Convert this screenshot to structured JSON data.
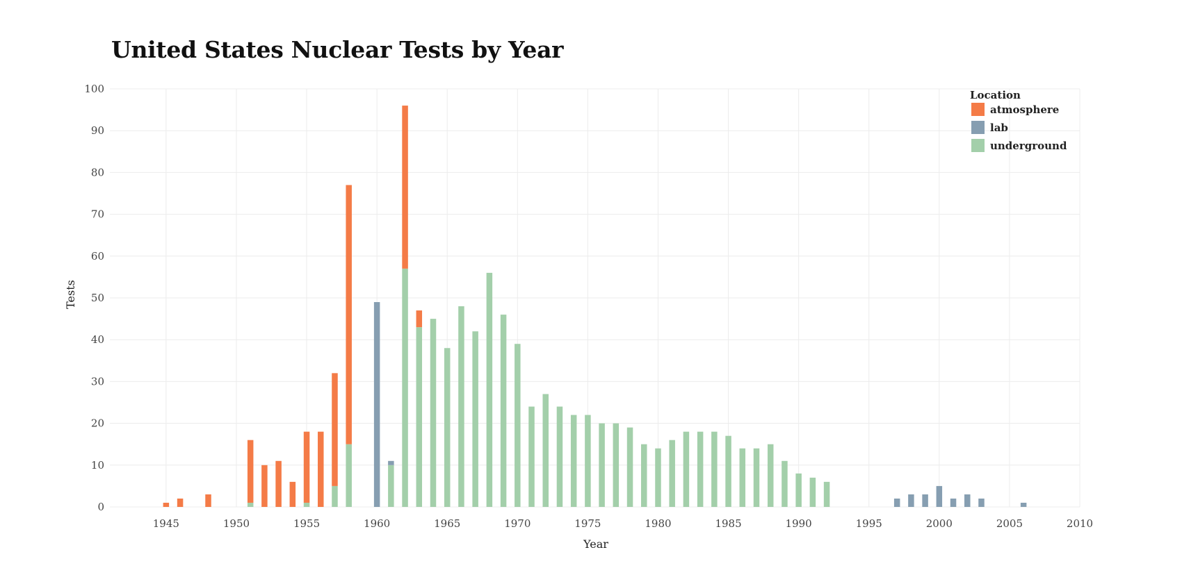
{
  "chart_data": {
    "type": "bar",
    "stacked": true,
    "title": "United States Nuclear Tests by Year",
    "xlabel": "Year",
    "ylabel": "Tests",
    "xlim": [
      1941,
      2010
    ],
    "ylim": [
      0,
      100
    ],
    "x_ticks": [
      1945,
      1950,
      1955,
      1960,
      1965,
      1970,
      1975,
      1980,
      1985,
      1990,
      1995,
      2000,
      2005,
      2010
    ],
    "y_ticks": [
      0,
      10,
      20,
      30,
      40,
      50,
      60,
      70,
      80,
      90,
      100
    ],
    "grid": true,
    "legend": {
      "title": "Location",
      "position": "top-right"
    },
    "series": [
      {
        "name": "underground",
        "color": "#a3cfaa",
        "points": [
          [
            1951,
            1
          ],
          [
            1955,
            1
          ],
          [
            1957,
            5
          ],
          [
            1958,
            15
          ],
          [
            1961,
            10
          ],
          [
            1962,
            57
          ],
          [
            1963,
            43
          ],
          [
            1964,
            45
          ],
          [
            1965,
            38
          ],
          [
            1966,
            48
          ],
          [
            1967,
            42
          ],
          [
            1968,
            56
          ],
          [
            1969,
            46
          ],
          [
            1970,
            39
          ],
          [
            1971,
            24
          ],
          [
            1972,
            27
          ],
          [
            1973,
            24
          ],
          [
            1974,
            22
          ],
          [
            1975,
            22
          ],
          [
            1976,
            20
          ],
          [
            1977,
            20
          ],
          [
            1978,
            19
          ],
          [
            1979,
            15
          ],
          [
            1980,
            14
          ],
          [
            1981,
            16
          ],
          [
            1982,
            18
          ],
          [
            1983,
            18
          ],
          [
            1984,
            18
          ],
          [
            1985,
            17
          ],
          [
            1986,
            14
          ],
          [
            1987,
            14
          ],
          [
            1988,
            15
          ],
          [
            1989,
            11
          ],
          [
            1990,
            8
          ],
          [
            1991,
            7
          ],
          [
            1992,
            6
          ]
        ]
      },
      {
        "name": "lab",
        "color": "#869eb1",
        "points": [
          [
            1960,
            49
          ],
          [
            1961,
            1
          ],
          [
            1997,
            2
          ],
          [
            1998,
            3
          ],
          [
            1999,
            3
          ],
          [
            2000,
            5
          ],
          [
            2001,
            2
          ],
          [
            2002,
            3
          ],
          [
            2003,
            2
          ],
          [
            2006,
            1
          ]
        ]
      },
      {
        "name": "atmosphere",
        "color": "#f47b47",
        "points": [
          [
            1945,
            1
          ],
          [
            1946,
            2
          ],
          [
            1948,
            3
          ],
          [
            1951,
            15
          ],
          [
            1952,
            10
          ],
          [
            1953,
            11
          ],
          [
            1954,
            6
          ],
          [
            1955,
            17
          ],
          [
            1956,
            18
          ],
          [
            1957,
            27
          ],
          [
            1958,
            62
          ],
          [
            1962,
            39
          ],
          [
            1963,
            4
          ]
        ]
      }
    ],
    "legend_order": [
      "atmosphere",
      "lab",
      "underground"
    ]
  }
}
